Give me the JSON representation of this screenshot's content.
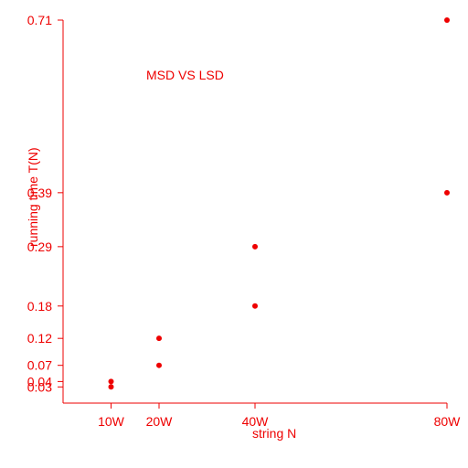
{
  "chart_data": {
    "type": "scatter",
    "title": "MSD VS LSD",
    "xlabel": "string N",
    "ylabel": "running time T(N)",
    "x_tick_values": [
      10,
      20,
      40,
      80
    ],
    "x_tick_labels": [
      "10W",
      "20W",
      "40W",
      "80W"
    ],
    "y_tick_values": [
      0.03,
      0.04,
      0.07,
      0.12,
      0.18,
      0.29,
      0.39,
      0.71
    ],
    "y_tick_labels": [
      "0.03",
      "0.04",
      "0.07",
      "0.12",
      "0.18",
      "0.29",
      "0.39",
      "0.71"
    ],
    "xlim": [
      0,
      80
    ],
    "ylim": [
      0,
      0.71
    ],
    "grid": false,
    "points": [
      {
        "x": 10,
        "y": 0.03
      },
      {
        "x": 10,
        "y": 0.04
      },
      {
        "x": 20,
        "y": 0.07
      },
      {
        "x": 20,
        "y": 0.12
      },
      {
        "x": 40,
        "y": 0.18
      },
      {
        "x": 40,
        "y": 0.29
      },
      {
        "x": 80,
        "y": 0.39
      },
      {
        "x": 80,
        "y": 0.71
      }
    ],
    "color": "#ee0000"
  }
}
